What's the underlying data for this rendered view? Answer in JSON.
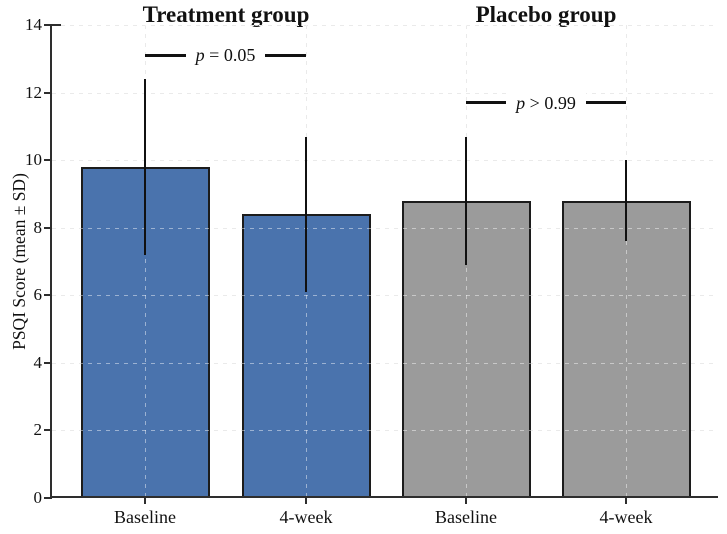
{
  "chart_data": {
    "type": "bar",
    "title": "",
    "xlabel": "",
    "ylabel": "PSQI Score (mean ± SD)",
    "ylim": [
      0,
      14
    ],
    "yticks": [
      0,
      2,
      4,
      6,
      8,
      10,
      12,
      14
    ],
    "grid": "dashed, both axes, light gray",
    "legend": "none",
    "categories": [
      "Baseline",
      "4-week"
    ],
    "groups": [
      {
        "title": "Treatment group",
        "color": "#4A73AD",
        "bars": [
          {
            "label": "Baseline",
            "mean": 9.8,
            "sd": 2.6,
            "error_low": 7.2,
            "error_high": 12.4
          },
          {
            "label": "4-week",
            "mean": 8.4,
            "sd": 2.3,
            "error_low": 6.1,
            "error_high": 10.7
          }
        ],
        "significance": {
          "label": "p = 0.05",
          "y": 13.1
        }
      },
      {
        "title": "Placebo group",
        "color": "#9B9B9B",
        "bars": [
          {
            "label": "Baseline",
            "mean": 8.8,
            "sd": 1.9,
            "error_low": 6.9,
            "error_high": 10.7
          },
          {
            "label": "4-week",
            "mean": 8.8,
            "sd": 1.2,
            "error_low": 7.6,
            "error_high": 10.0
          }
        ],
        "significance": {
          "label": "p > 0.99",
          "y": 11.7
        }
      }
    ],
    "bar_edge_color": "#1C1C1C",
    "error_bar_color": "#111111",
    "gridline_color": "#D9D9D9",
    "axis_color": "#2E2E2E",
    "text_color": "#111111",
    "background_color": "#FFFFFF"
  }
}
